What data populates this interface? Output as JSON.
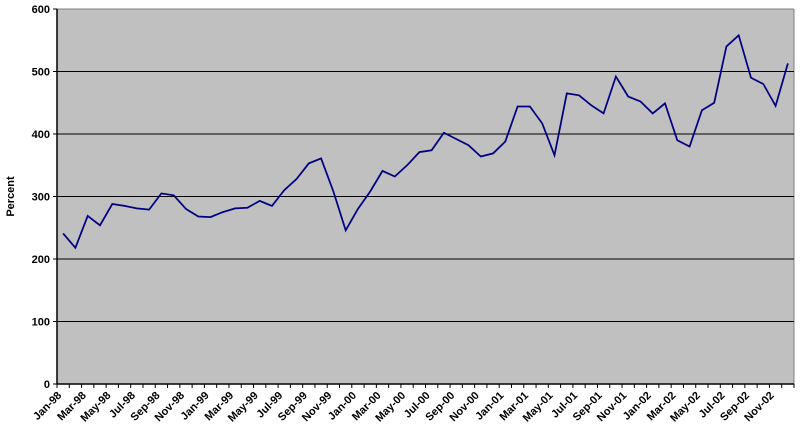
{
  "chart_data": {
    "type": "line",
    "title": "",
    "xlabel": "",
    "ylabel": "Percent",
    "ylim": [
      0,
      600
    ],
    "y_ticks": [
      0,
      100,
      200,
      300,
      400,
      500,
      600
    ],
    "x_label_interval": 2,
    "grid": "horizontal",
    "legend": "none",
    "x": [
      "Jan-98",
      "Feb-98",
      "Mar-98",
      "Apr-98",
      "May-98",
      "Jun-98",
      "Jul-98",
      "Aug-98",
      "Sep-98",
      "Oct-98",
      "Nov-98",
      "Dec-98",
      "Jan-99",
      "Feb-99",
      "Mar-99",
      "Apr-99",
      "May-99",
      "Jun-99",
      "Jul-99",
      "Aug-99",
      "Sep-99",
      "Oct-99",
      "Nov-99",
      "Dec-99",
      "Jan-00",
      "Feb-00",
      "Mar-00",
      "Apr-00",
      "May-00",
      "Jun-00",
      "Jul-00",
      "Aug-00",
      "Sep-00",
      "Oct-00",
      "Nov-00",
      "Dec-00",
      "Jan-01",
      "Feb-01",
      "Mar-01",
      "Apr-01",
      "May-01",
      "Jun-01",
      "Jul-01",
      "Aug-01",
      "Sep-01",
      "Oct-01",
      "Nov-01",
      "Dec-01",
      "Jan-02",
      "Feb-02",
      "Mar-02",
      "Apr-02",
      "May-02",
      "Jun-02",
      "Jul-02",
      "Aug-02",
      "Sep-02",
      "Oct-02",
      "Nov-02",
      "Dec-02"
    ],
    "values": [
      241,
      218,
      269,
      254,
      288,
      285,
      281,
      279,
      305,
      302,
      280,
      268,
      267,
      275,
      281,
      282,
      293,
      285,
      310,
      328,
      353,
      361,
      308,
      246,
      280,
      308,
      341,
      332,
      350,
      371,
      374,
      402,
      392,
      382,
      364,
      369,
      388,
      444,
      444,
      417,
      366,
      465,
      462,
      446,
      433,
      492,
      460,
      452,
      433,
      449,
      390,
      380,
      438,
      450,
      540,
      558,
      490,
      480,
      445,
      513
    ],
    "style": {
      "series_color": "#000080",
      "plot_bg_color": "#c0c0c0",
      "grid_color": "#000000",
      "axis_color": "#000000",
      "border_color": "#808080",
      "text_color": "#000000"
    }
  }
}
